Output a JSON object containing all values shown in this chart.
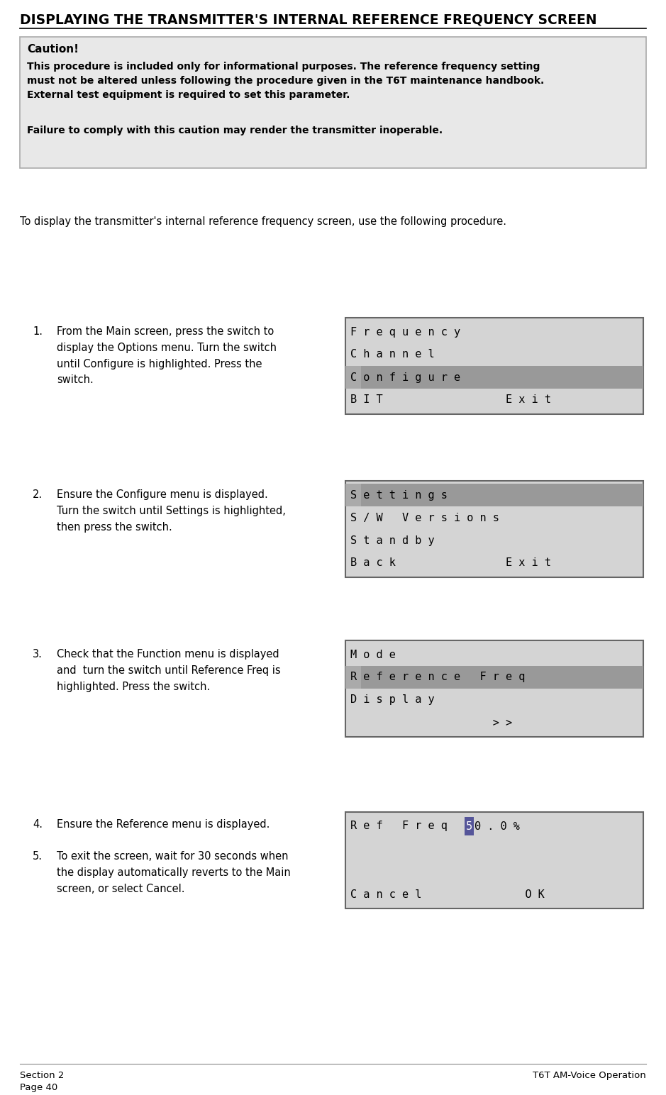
{
  "title": "DISPLAYING THE TRANSMITTER'S INTERNAL REFERENCE FREQUENCY SCREEN",
  "caution_title": "Caution!",
  "caution_line1": "This procedure is included only for informational purposes. The reference frequency setting",
  "caution_line2": "must not be altered unless following the procedure given in the T6T maintenance handbook.",
  "caution_line3": "External test equipment is required to set this parameter.",
  "caution_line4": "Failure to comply with this caution may render the transmitter inoperable.",
  "intro_text": "To display the transmitter's internal reference frequency screen, use the following procedure.",
  "steps": [
    {
      "num": "1.",
      "text": "From the Main screen, press the switch to\ndisplay the Options menu. Turn the switch\nuntil Configure is highlighted. Press the\nswitch.",
      "screen_lines": [
        "F r e q u e n c y",
        "C h a n n e l",
        "C o n f i g u r e",
        "B I T                   E x i t"
      ],
      "highlight_line": 2
    },
    {
      "num": "2.",
      "text": "Ensure the Configure menu is displayed.\nTurn the switch until Settings is highlighted,\nthen press the switch.",
      "screen_lines": [
        "S e t t i n g s",
        "S / W   V e r s i o n s",
        "S t a n d b y",
        "B a c k                 E x i t"
      ],
      "highlight_line": 0
    },
    {
      "num": "3.",
      "text": "Check that the Function menu is displayed\nand  turn the switch until Reference Freq is\nhighlighted. Press the switch.",
      "screen_lines": [
        "M o d e",
        "R e f e r e n c e   F r e q",
        "D i s p l a y",
        "                      > >"
      ],
      "highlight_line": 1
    }
  ],
  "step4_num": "4.",
  "step4_text": "Ensure the Reference menu is displayed.",
  "step5_num": "5.",
  "step5_text": "To exit the screen, wait for 30 seconds when\nthe display automatically reverts to the Main\nscreen, or select Cancel.",
  "ref_screen_line1_before": "R e f   F r e q      ",
  "ref_screen_highlighted": "5",
  "ref_screen_line1_after": "0 . 0 %",
  "ref_screen_line3": "C a n c e l                O K",
  "footer_left1": "Section 2",
  "footer_left2": "Page 40",
  "footer_right": "T6T AM-Voice Operation",
  "bg_color": "#ffffff",
  "caution_bg": "#e8e8e8",
  "screen_bg": "#d4d4d4",
  "screen_highlight_color": "#999999",
  "screen_highlight_first_char": "#aaaaaa",
  "screen_border": "#666666",
  "highlight_box_color": "#555599",
  "title_color": "#000000",
  "text_color": "#000000",
  "caution_border": "#aaaaaa"
}
